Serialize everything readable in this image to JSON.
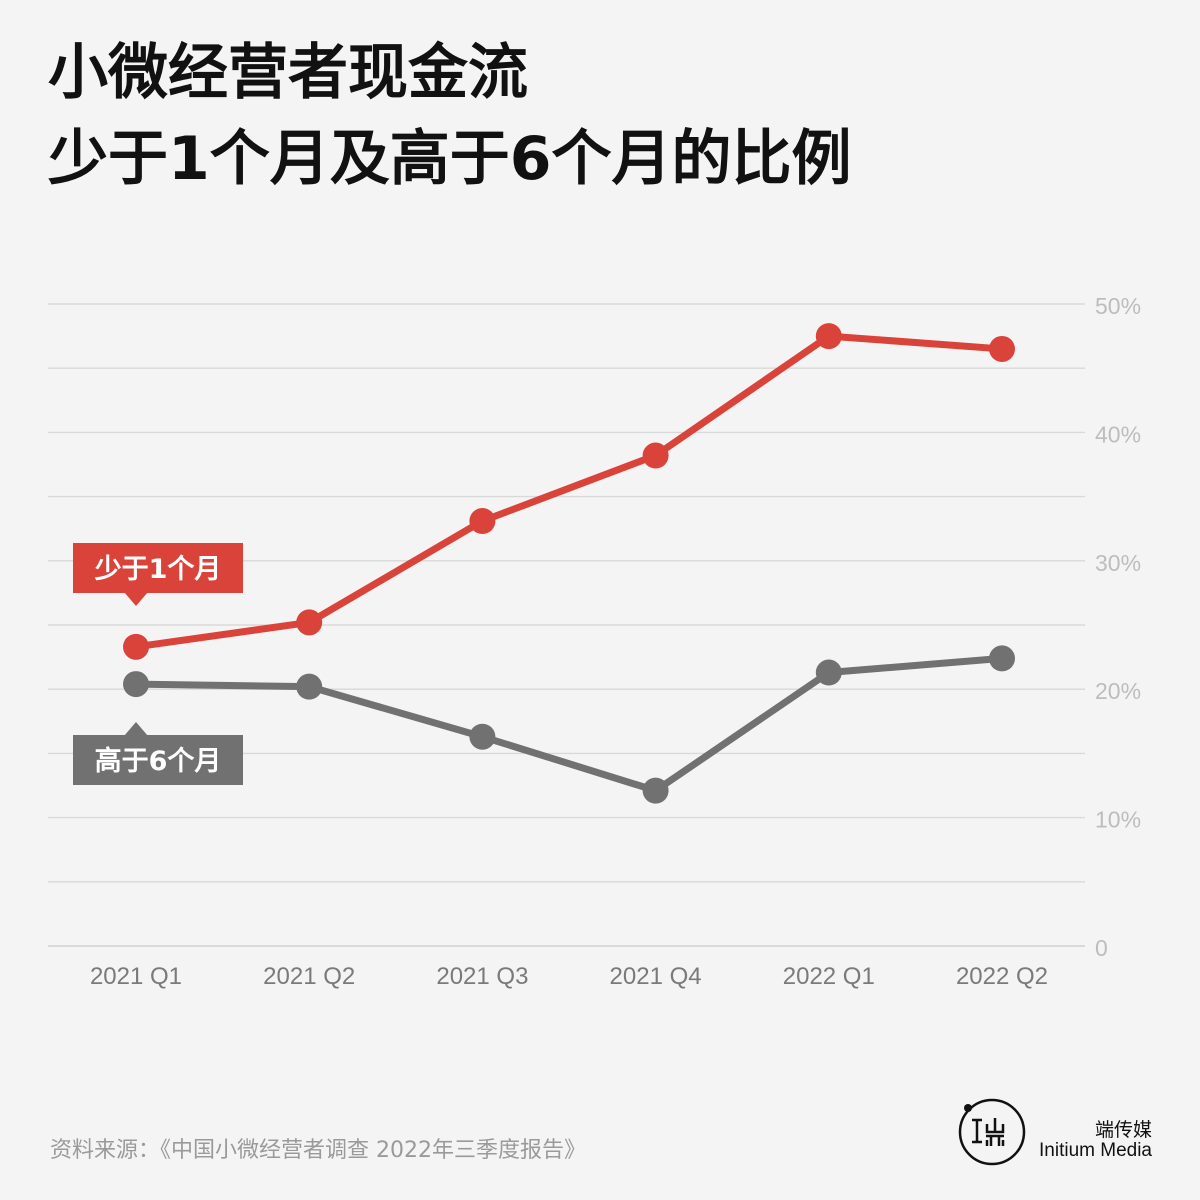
{
  "title": {
    "line1": "小微经营者现金流",
    "line2": "少于1个月及高于6个月的比例"
  },
  "chart_data": {
    "type": "line",
    "categories": [
      "2021 Q1",
      "2021 Q2",
      "2021 Q3",
      "2021 Q4",
      "2022 Q1",
      "2022 Q2"
    ],
    "series": [
      {
        "name": "少于1个月",
        "color": "#d9433a",
        "values": [
          23.3,
          25.2,
          33.1,
          38.2,
          47.5,
          46.5
        ]
      },
      {
        "name": "高于6个月",
        "color": "#717171",
        "values": [
          20.4,
          20.2,
          16.3,
          12.1,
          21.3,
          22.4
        ]
      }
    ],
    "ylim": [
      0,
      50
    ],
    "y_ticks": [
      {
        "value": 0,
        "label": "0"
      },
      {
        "value": 10,
        "label": "10%"
      },
      {
        "value": 20,
        "label": "20%"
      },
      {
        "value": 30,
        "label": "30%"
      },
      {
        "value": 40,
        "label": "40%"
      },
      {
        "value": 50,
        "label": "50%"
      }
    ],
    "grid_step": 5,
    "y_axis_side": "right",
    "grid": true,
    "legend": "inline labels next to first points"
  },
  "source": "资料来源：《中国小微经营者调查 2022年三季度报告》",
  "brand": {
    "name_cn": "端传媒",
    "name_en": "Initium Media",
    "logo_icon": "initium-logo-icon",
    "color": "#111111"
  }
}
